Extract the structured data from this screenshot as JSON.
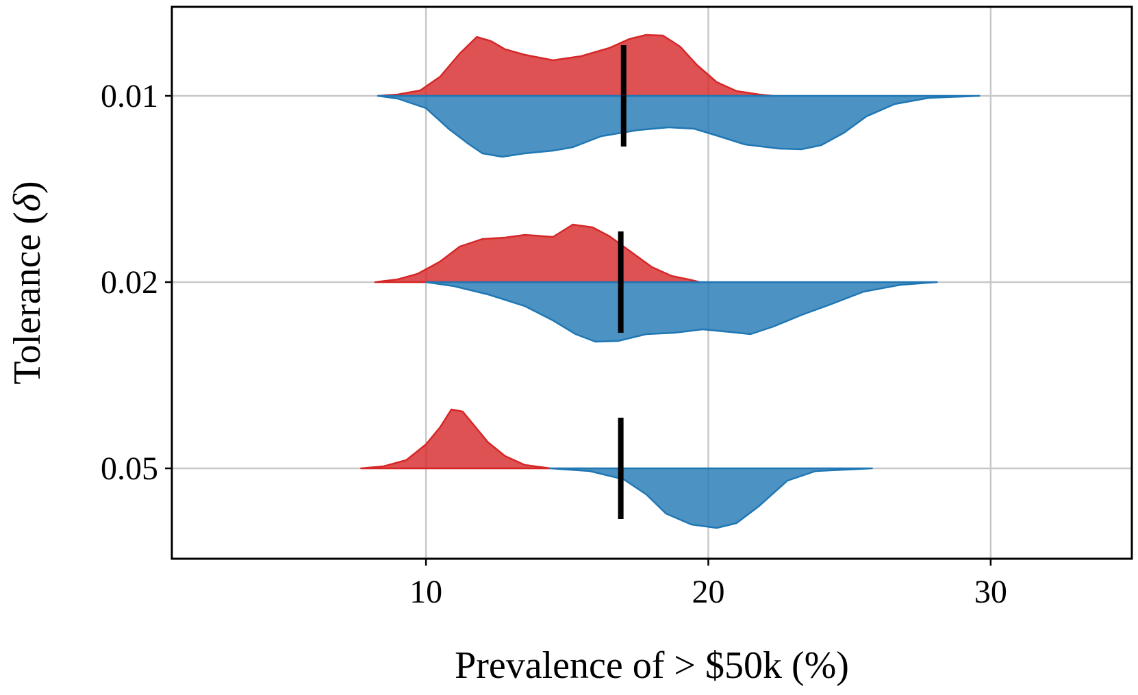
{
  "chart_data": {
    "type": "split-violin",
    "xlabel": "Prevalence of > $50k (%)",
    "ylabel_text": "Tolerance (",
    "ylabel_symbol": "δ",
    "ylabel_close": ")",
    "xlim": [
      1,
      35
    ],
    "xticks": [
      10,
      20,
      30
    ],
    "grid": true,
    "colors": {
      "upper": "#d62728",
      "lower": "#1f77b4",
      "marker": "#000000"
    },
    "groups": [
      {
        "label": "0.01",
        "marker_x": 17.0,
        "upper": [
          [
            8.3,
            0.0
          ],
          [
            9.0,
            0.02
          ],
          [
            9.8,
            0.08
          ],
          [
            10.5,
            0.28
          ],
          [
            11.2,
            0.62
          ],
          [
            11.8,
            0.86
          ],
          [
            12.3,
            0.8
          ],
          [
            12.8,
            0.68
          ],
          [
            13.5,
            0.6
          ],
          [
            14.5,
            0.52
          ],
          [
            15.5,
            0.58
          ],
          [
            16.5,
            0.7
          ],
          [
            17.2,
            0.83
          ],
          [
            17.8,
            0.89
          ],
          [
            18.4,
            0.88
          ],
          [
            19.0,
            0.72
          ],
          [
            19.6,
            0.45
          ],
          [
            20.3,
            0.2
          ],
          [
            21.0,
            0.07
          ],
          [
            21.8,
            0.02
          ],
          [
            22.3,
            0.0
          ]
        ],
        "lower": [
          [
            8.3,
            0.0
          ],
          [
            9.0,
            0.04
          ],
          [
            10.0,
            0.18
          ],
          [
            10.8,
            0.48
          ],
          [
            11.5,
            0.7
          ],
          [
            12.0,
            0.84
          ],
          [
            12.7,
            0.89
          ],
          [
            13.5,
            0.84
          ],
          [
            14.5,
            0.8
          ],
          [
            15.2,
            0.75
          ],
          [
            16.2,
            0.59
          ],
          [
            17.5,
            0.5
          ],
          [
            18.6,
            0.46
          ],
          [
            19.5,
            0.48
          ],
          [
            20.3,
            0.58
          ],
          [
            21.3,
            0.71
          ],
          [
            22.5,
            0.77
          ],
          [
            23.3,
            0.78
          ],
          [
            24.0,
            0.72
          ],
          [
            24.8,
            0.54
          ],
          [
            25.6,
            0.3
          ],
          [
            26.6,
            0.12
          ],
          [
            27.8,
            0.03
          ],
          [
            29.6,
            0.0
          ]
        ]
      },
      {
        "label": "0.02",
        "marker_x": 16.9,
        "upper": [
          [
            8.2,
            0.0
          ],
          [
            9.0,
            0.04
          ],
          [
            9.7,
            0.12
          ],
          [
            10.5,
            0.3
          ],
          [
            11.2,
            0.52
          ],
          [
            12.0,
            0.63
          ],
          [
            12.8,
            0.65
          ],
          [
            13.5,
            0.69
          ],
          [
            14.5,
            0.66
          ],
          [
            15.2,
            0.84
          ],
          [
            15.9,
            0.8
          ],
          [
            16.5,
            0.67
          ],
          [
            17.3,
            0.43
          ],
          [
            18.0,
            0.22
          ],
          [
            18.7,
            0.09
          ],
          [
            19.4,
            0.03
          ],
          [
            19.7,
            0.0
          ]
        ],
        "lower": [
          [
            10.0,
            0.0
          ],
          [
            11.0,
            0.06
          ],
          [
            12.2,
            0.18
          ],
          [
            13.5,
            0.35
          ],
          [
            14.5,
            0.56
          ],
          [
            15.3,
            0.76
          ],
          [
            16.0,
            0.87
          ],
          [
            16.8,
            0.86
          ],
          [
            17.8,
            0.76
          ],
          [
            18.8,
            0.74
          ],
          [
            19.8,
            0.69
          ],
          [
            20.8,
            0.73
          ],
          [
            21.5,
            0.76
          ],
          [
            22.3,
            0.65
          ],
          [
            23.3,
            0.48
          ],
          [
            24.3,
            0.33
          ],
          [
            25.5,
            0.14
          ],
          [
            26.8,
            0.04
          ],
          [
            28.1,
            0.0
          ]
        ]
      },
      {
        "label": "0.05",
        "marker_x": 16.9,
        "upper": [
          [
            7.7,
            0.0
          ],
          [
            8.5,
            0.03
          ],
          [
            9.3,
            0.12
          ],
          [
            10.0,
            0.35
          ],
          [
            10.5,
            0.6
          ],
          [
            10.9,
            0.86
          ],
          [
            11.3,
            0.83
          ],
          [
            11.7,
            0.63
          ],
          [
            12.2,
            0.38
          ],
          [
            12.8,
            0.18
          ],
          [
            13.5,
            0.05
          ],
          [
            14.4,
            0.0
          ]
        ],
        "lower": [
          [
            14.4,
            0.0
          ],
          [
            15.8,
            0.04
          ],
          [
            17.0,
            0.16
          ],
          [
            17.8,
            0.38
          ],
          [
            18.5,
            0.66
          ],
          [
            19.4,
            0.82
          ],
          [
            20.3,
            0.87
          ],
          [
            21.0,
            0.8
          ],
          [
            21.8,
            0.55
          ],
          [
            22.8,
            0.18
          ],
          [
            23.8,
            0.04
          ],
          [
            25.8,
            0.0
          ]
        ]
      }
    ]
  }
}
